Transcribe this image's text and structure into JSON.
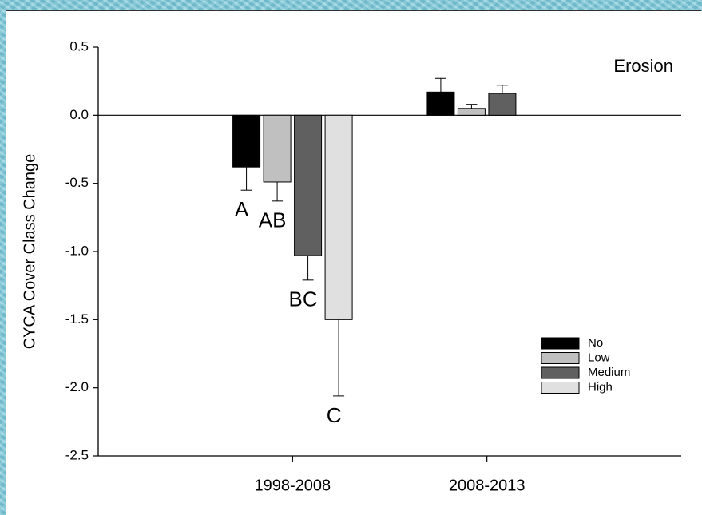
{
  "chart_data": {
    "type": "bar",
    "ylabel": "CYCA Cover Class Change",
    "annotation": "Erosion",
    "categories": [
      "1998-2008",
      "2008-2013"
    ],
    "series": [
      {
        "name": "No",
        "color": "#000000",
        "values": [
          -0.38,
          0.17
        ],
        "errors": [
          0.17,
          0.1
        ]
      },
      {
        "name": "Low",
        "color": "#c0c0c0",
        "values": [
          -0.49,
          0.05
        ],
        "errors": [
          0.14,
          0.03
        ]
      },
      {
        "name": "Medium",
        "color": "#606060",
        "values": [
          -1.03,
          0.16
        ],
        "errors": [
          0.18,
          0.06
        ]
      },
      {
        "name": "High",
        "color": "#e0e0e0",
        "values": [
          -1.5,
          null
        ],
        "errors": [
          0.56,
          null
        ]
      }
    ],
    "group_letters": [
      "A",
      "AB",
      "BC",
      "C"
    ],
    "ylim": [
      -2.5,
      0.5
    ],
    "yticks": [
      0.5,
      {
        "value": 0,
        "label": "0.0"
      },
      -0.5,
      {
        "value": -1,
        "label": "-1.0"
      },
      -1.5,
      {
        "value": -2,
        "label": "-2.0"
      },
      -2.5
    ],
    "legend": "lower right"
  }
}
